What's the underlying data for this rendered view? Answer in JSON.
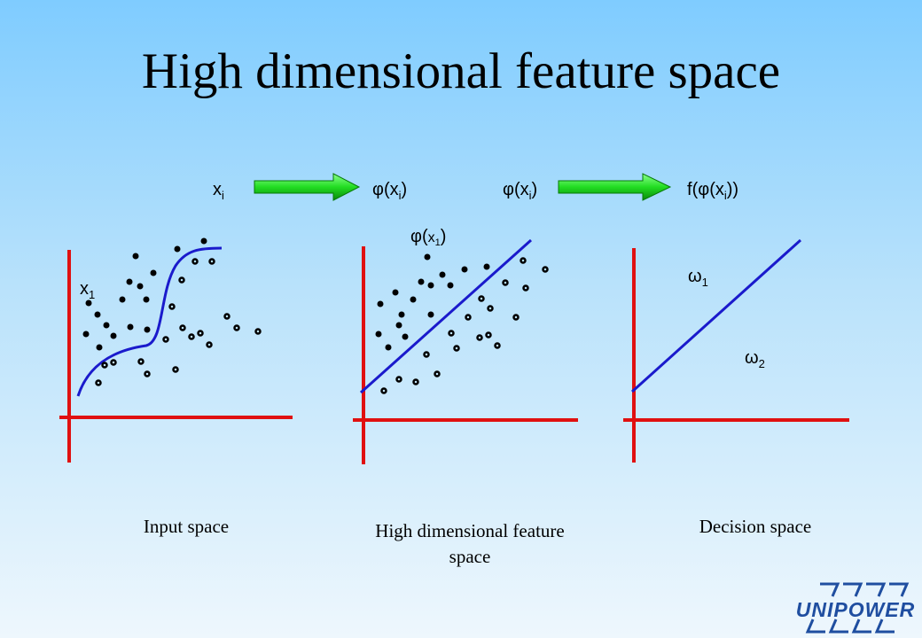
{
  "title": "High dimensional feature space",
  "mapping": {
    "input_var": "x",
    "input_sub": "i",
    "phi_symbol": "φ",
    "phi_arg_var": "x",
    "phi_arg_sub": "i",
    "f_symbol": "f",
    "arrow_color": "#22dd22"
  },
  "panels": {
    "input": {
      "caption": "Input space",
      "point_label_var": "x",
      "point_label_sub": "1"
    },
    "feature": {
      "caption_line1": "High dimensional feature",
      "caption_line2": "space",
      "point_label_symbol": "φ",
      "point_label_var": "x",
      "point_label_sub": "1"
    },
    "decision": {
      "caption": "Decision space",
      "class1_symbol": "ω",
      "class1_sub": "1",
      "class2_symbol": "ω",
      "class2_sub": "2"
    }
  },
  "colors": {
    "axis": "#e01010",
    "boundary": "#1a1acc"
  },
  "logo": {
    "text": "UNIPOWER"
  }
}
